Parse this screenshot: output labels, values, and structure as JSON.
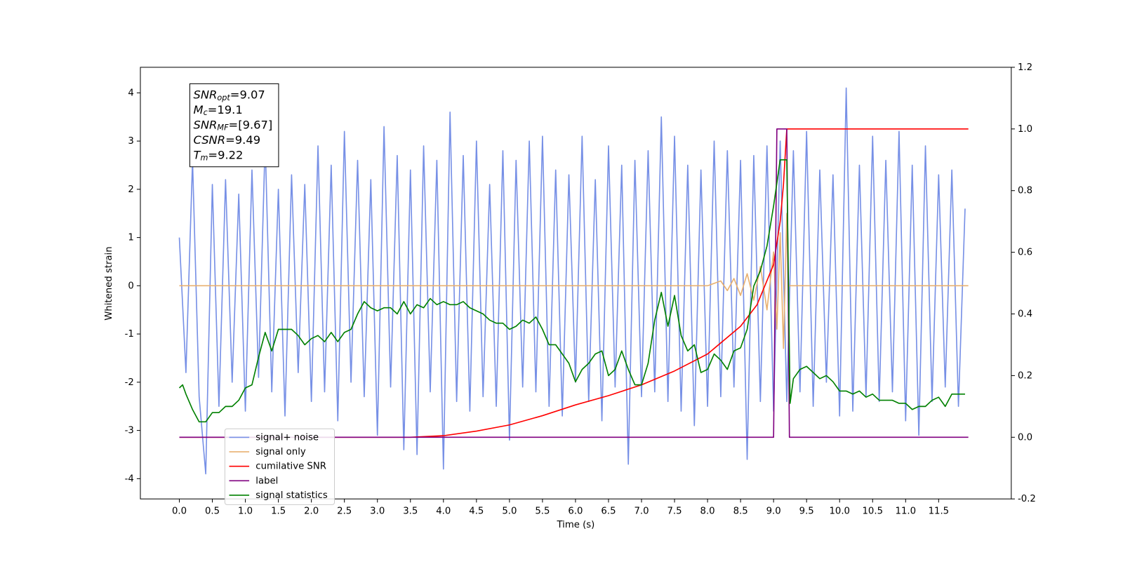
{
  "chart_data": {
    "type": "line",
    "xlabel": "Time (s)",
    "ylabel": "Whitened strain",
    "xlim": [
      -0.59,
      12.6
    ],
    "ylim": [
      -4.42,
      4.53
    ],
    "y2lim": [
      -0.2,
      1.2
    ],
    "xticks": [
      {
        "value": 0,
        "label": "0.0"
      },
      0.5,
      {
        "value": 1,
        "label": "1.0"
      },
      1.5,
      {
        "value": 2,
        "label": "2.0"
      },
      2.5,
      {
        "value": 3,
        "label": "3.0"
      },
      3.5,
      {
        "value": 4,
        "label": "4.0"
      },
      4.5,
      {
        "value": 5,
        "label": "5.0"
      },
      5.5,
      {
        "value": 6,
        "label": "6.0"
      },
      6.5,
      {
        "value": 7,
        "label": "7.0"
      },
      7.5,
      {
        "value": 8,
        "label": "8.0"
      },
      8.5,
      {
        "value": 9,
        "label": "9.0"
      },
      9.5,
      {
        "value": 10,
        "label": "10.0"
      },
      10.5,
      {
        "value": 11,
        "label": "11.0"
      },
      11.5
    ],
    "yticks": [
      -4,
      -3,
      -2,
      -1,
      0,
      1,
      2,
      3,
      4
    ],
    "y2ticks": [
      -0.2,
      {
        "value": 0,
        "label": "0.0"
      },
      0.2,
      0.4,
      0.6,
      0.8,
      {
        "value": 1,
        "label": "1.0"
      },
      1.2
    ],
    "legend": "lower left",
    "annotation": [
      {
        "main": "SNR",
        "sub": "opt",
        "rest": "=9.07"
      },
      {
        "main": "M",
        "sub": "c",
        "rest": "=19.1"
      },
      {
        "main": "SNR",
        "sub": "MF",
        "rest": "=[9.67]"
      },
      {
        "main": "CSNR",
        "sub": null,
        "rest": "=9.49"
      },
      {
        "main": "T",
        "sub": "m",
        "rest": "=9.22"
      }
    ],
    "series": [
      {
        "name": "signal+ noise",
        "color": "#7790e6",
        "axis": "y",
        "x": [
          0.0,
          0.1,
          0.2,
          0.3,
          0.4,
          0.5,
          0.6,
          0.7,
          0.8,
          0.9,
          1.0,
          1.1,
          1.2,
          1.3,
          1.4,
          1.5,
          1.6,
          1.7,
          1.8,
          1.9,
          2.0,
          2.1,
          2.2,
          2.3,
          2.4,
          2.5,
          2.6,
          2.7,
          2.8,
          2.9,
          3.0,
          3.1,
          3.2,
          3.3,
          3.4,
          3.5,
          3.6,
          3.7,
          3.8,
          3.9,
          4.0,
          4.1,
          4.2,
          4.3,
          4.4,
          4.5,
          4.6,
          4.7,
          4.8,
          4.9,
          5.0,
          5.1,
          5.2,
          5.3,
          5.4,
          5.5,
          5.6,
          5.7,
          5.8,
          5.9,
          6.0,
          6.1,
          6.2,
          6.3,
          6.4,
          6.5,
          6.6,
          6.7,
          6.8,
          6.9,
          7.0,
          7.1,
          7.2,
          7.3,
          7.4,
          7.5,
          7.6,
          7.7,
          7.8,
          7.9,
          8.0,
          8.1,
          8.2,
          8.3,
          8.4,
          8.5,
          8.6,
          8.7,
          8.8,
          8.9,
          9.0,
          9.1,
          9.2,
          9.3,
          9.4,
          9.5,
          9.6,
          9.7,
          9.8,
          9.9,
          10.0,
          10.1,
          10.2,
          10.3,
          10.4,
          10.5,
          10.6,
          10.7,
          10.8,
          10.9,
          11.0,
          11.1,
          11.2,
          11.3,
          11.4,
          11.5,
          11.6,
          11.7,
          11.8,
          11.9
        ],
        "values": [
          1.0,
          -1.8,
          2.6,
          -2.3,
          -3.9,
          2.1,
          -2.5,
          2.2,
          -2.0,
          1.9,
          -2.6,
          2.4,
          -1.9,
          3.0,
          -2.2,
          2.0,
          -2.7,
          2.3,
          -1.8,
          2.1,
          -2.4,
          2.9,
          -2.2,
          2.5,
          -2.8,
          3.2,
          -2.0,
          2.6,
          -2.3,
          2.2,
          -3.1,
          3.3,
          -2.1,
          2.7,
          -3.4,
          2.4,
          -3.5,
          2.9,
          -2.2,
          2.6,
          -3.8,
          3.6,
          -2.4,
          2.7,
          -2.6,
          3.0,
          -2.3,
          2.1,
          -2.5,
          2.8,
          -3.2,
          2.6,
          -2.1,
          3.0,
          -2.2,
          3.1,
          -2.5,
          2.4,
          -2.7,
          2.3,
          -2.0,
          3.1,
          -2.4,
          2.2,
          -2.8,
          2.9,
          -2.1,
          2.5,
          -3.7,
          2.6,
          -2.3,
          2.8,
          -2.2,
          3.5,
          -2.4,
          3.1,
          -2.6,
          2.5,
          -2.9,
          2.4,
          -2.5,
          3.0,
          -2.3,
          2.8,
          -2.1,
          2.6,
          -3.6,
          2.7,
          -2.4,
          2.9,
          -2.6,
          3.0,
          -2.4,
          2.8,
          -2.2,
          3.2,
          -2.5,
          2.4,
          -2.0,
          2.3,
          -2.7,
          4.1,
          -2.6,
          2.5,
          -2.3,
          3.1,
          -2.4,
          2.6,
          -2.2,
          3.2,
          -2.8,
          2.5,
          -3.1,
          2.9,
          -2.4,
          2.3,
          -2.1,
          2.4,
          -2.5,
          1.6
        ]
      },
      {
        "name": "signal only",
        "color": "#e8b070",
        "axis": "y",
        "x": [
          0.0,
          8.0,
          8.2,
          8.3,
          8.4,
          8.5,
          8.6,
          8.7,
          8.8,
          8.9,
          9.0,
          9.05,
          9.1,
          9.15,
          9.2,
          9.22,
          11.95
        ],
        "values": [
          0,
          0,
          0.1,
          -0.1,
          0.15,
          -0.2,
          0.25,
          -0.3,
          0.4,
          -0.5,
          0.7,
          -0.9,
          1.1,
          -1.3,
          1.5,
          0,
          0
        ]
      },
      {
        "name": "cumilative SNR",
        "color": "#ff0000",
        "axis": "y2",
        "x": [
          0.0,
          3.5,
          4.0,
          4.5,
          5.0,
          5.5,
          6.0,
          6.5,
          7.0,
          7.5,
          8.0,
          8.5,
          8.75,
          9.0,
          9.1,
          9.15,
          9.2,
          11.95
        ],
        "values": [
          0,
          0,
          0.005,
          0.02,
          0.04,
          0.07,
          0.105,
          0.135,
          0.17,
          0.215,
          0.27,
          0.36,
          0.43,
          0.56,
          0.7,
          0.82,
          1.0,
          1.0
        ]
      },
      {
        "name": "label",
        "color": "#800080",
        "axis": "y2",
        "x": [
          0.0,
          9.0,
          9.05,
          9.2,
          9.24,
          11.95
        ],
        "values": [
          0,
          0,
          1,
          1,
          0,
          0
        ]
      },
      {
        "name": "signal statistics",
        "color": "#008000",
        "axis": "y2",
        "x": [
          0.0,
          0.05,
          0.1,
          0.2,
          0.3,
          0.4,
          0.5,
          0.6,
          0.7,
          0.8,
          0.9,
          1.0,
          1.1,
          1.2,
          1.3,
          1.4,
          1.5,
          1.6,
          1.7,
          1.8,
          1.9,
          2.0,
          2.1,
          2.2,
          2.3,
          2.4,
          2.5,
          2.6,
          2.7,
          2.8,
          2.9,
          3.0,
          3.1,
          3.2,
          3.3,
          3.4,
          3.5,
          3.6,
          3.7,
          3.8,
          3.9,
          4.0,
          4.1,
          4.2,
          4.3,
          4.4,
          4.5,
          4.6,
          4.7,
          4.8,
          4.9,
          5.0,
          5.1,
          5.2,
          5.3,
          5.4,
          5.5,
          5.6,
          5.7,
          5.8,
          5.9,
          6.0,
          6.1,
          6.2,
          6.3,
          6.4,
          6.5,
          6.6,
          6.7,
          6.8,
          6.9,
          7.0,
          7.1,
          7.2,
          7.3,
          7.4,
          7.5,
          7.6,
          7.7,
          7.8,
          7.9,
          8.0,
          8.1,
          8.2,
          8.3,
          8.4,
          8.5,
          8.6,
          8.7,
          8.8,
          8.9,
          9.0,
          9.1,
          9.2,
          9.25,
          9.3,
          9.4,
          9.5,
          9.6,
          9.7,
          9.8,
          9.9,
          10.0,
          10.1,
          10.2,
          10.3,
          10.4,
          10.5,
          10.6,
          10.7,
          10.8,
          10.9,
          11.0,
          11.1,
          11.2,
          11.3,
          11.4,
          11.5,
          11.6,
          11.7,
          11.8,
          11.9
        ],
        "values": [
          0.16,
          0.17,
          0.14,
          0.09,
          0.05,
          0.05,
          0.08,
          0.08,
          0.1,
          0.1,
          0.12,
          0.16,
          0.17,
          0.26,
          0.34,
          0.28,
          0.35,
          0.35,
          0.35,
          0.33,
          0.3,
          0.32,
          0.33,
          0.31,
          0.34,
          0.31,
          0.34,
          0.35,
          0.4,
          0.44,
          0.42,
          0.41,
          0.42,
          0.42,
          0.4,
          0.44,
          0.4,
          0.43,
          0.42,
          0.45,
          0.43,
          0.44,
          0.43,
          0.43,
          0.44,
          0.42,
          0.41,
          0.4,
          0.38,
          0.37,
          0.37,
          0.35,
          0.36,
          0.38,
          0.37,
          0.39,
          0.35,
          0.3,
          0.3,
          0.27,
          0.24,
          0.18,
          0.22,
          0.24,
          0.27,
          0.28,
          0.2,
          0.22,
          0.28,
          0.22,
          0.17,
          0.17,
          0.24,
          0.38,
          0.47,
          0.36,
          0.46,
          0.33,
          0.28,
          0.3,
          0.21,
          0.22,
          0.27,
          0.25,
          0.22,
          0.28,
          0.29,
          0.35,
          0.49,
          0.54,
          0.62,
          0.75,
          0.9,
          0.9,
          0.11,
          0.19,
          0.22,
          0.23,
          0.21,
          0.19,
          0.2,
          0.18,
          0.15,
          0.15,
          0.14,
          0.15,
          0.13,
          0.14,
          0.12,
          0.12,
          0.12,
          0.11,
          0.11,
          0.09,
          0.1,
          0.1,
          0.12,
          0.13,
          0.1,
          0.14,
          0.14,
          0.14
        ]
      }
    ]
  }
}
